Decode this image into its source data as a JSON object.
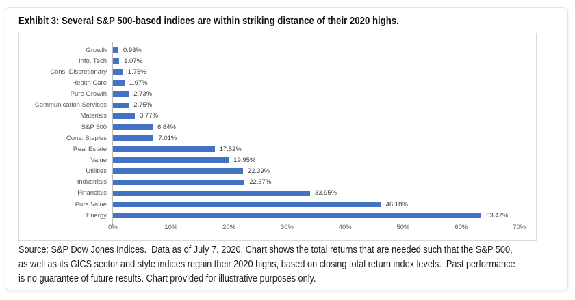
{
  "title": "Exhibit 3: Several S&P 500-based indices are within striking distance of their 2020 highs.",
  "chart_data": {
    "type": "bar",
    "orientation": "horizontal",
    "title": "",
    "xlabel": "",
    "ylabel": "",
    "categories": [
      "Growth",
      "Info. Tech",
      "Cons. Discretionary",
      "Health Care",
      "Pure Growth",
      "Communication Services",
      "Materials",
      "S&P 500",
      "Cons. Staples",
      "Real Estate",
      "Value",
      "Utilities",
      "Industrials",
      "Financials",
      "Pure Value",
      "Energy"
    ],
    "values": [
      0.93,
      1.07,
      1.75,
      1.97,
      2.73,
      2.75,
      3.77,
      6.84,
      7.01,
      17.52,
      19.95,
      22.39,
      22.67,
      33.95,
      46.18,
      63.47
    ],
    "value_labels": [
      "0.93%",
      "1.07%",
      "1.75%",
      "1.97%",
      "2.73%",
      "2.75%",
      "3.77%",
      "6.84%",
      "7.01%",
      "17.52%",
      "19.95%",
      "22.39%",
      "22.67%",
      "33.95%",
      "46.18%",
      "63.47%"
    ],
    "xlim": [
      0,
      70
    ],
    "x_ticks": [
      "0%",
      "10%",
      "20%",
      "30%",
      "40%",
      "50%",
      "60%",
      "70%"
    ],
    "grid": false,
    "legend": false,
    "bar_color": "#4472C4",
    "category_label_color": "#595959",
    "value_label_color": "#404040",
    "axis_line_color": "#bfbfbf"
  },
  "footer": {
    "lines": [
      "Source: S&P Dow Jones Indices.  Data as of July 7, 2020. Chart shows the total returns that are needed such that the S&P 500,",
      "as well as its GICS sector and style indices regain their 2020 highs, based on closing total return index levels.  Past performance",
      "is no guarantee of future results. Chart provided for illustrative purposes only."
    ]
  }
}
